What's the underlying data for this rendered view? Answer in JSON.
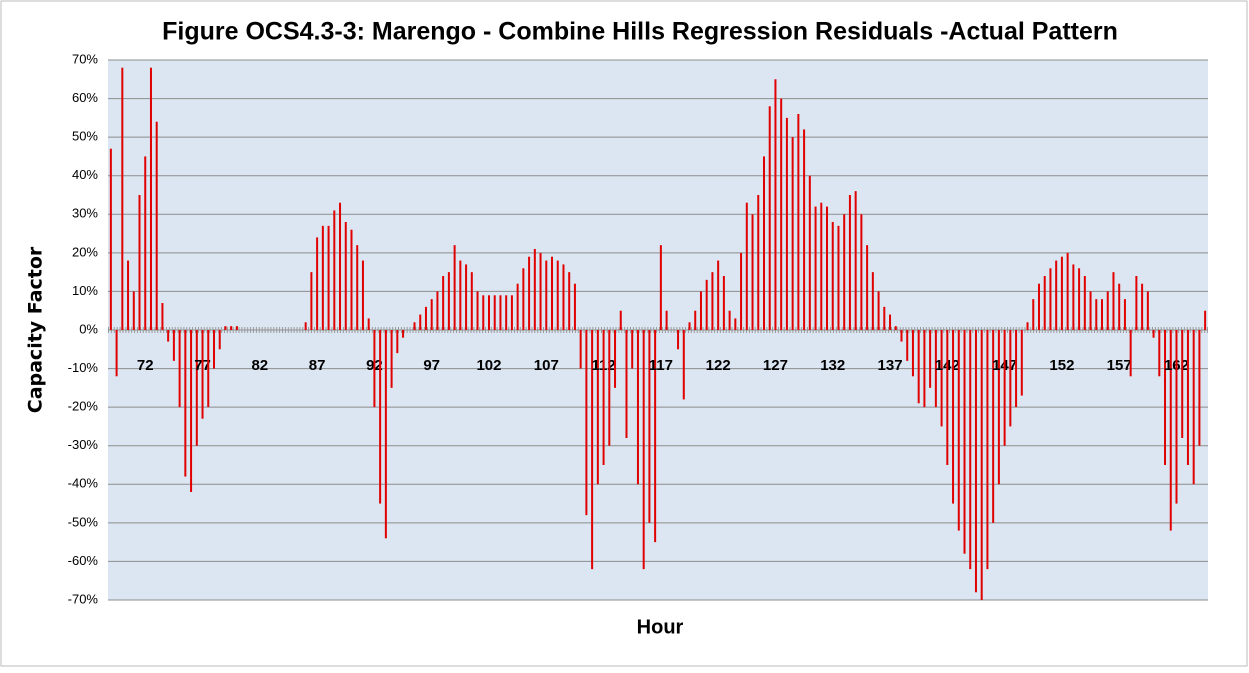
{
  "chart_data": {
    "type": "bar",
    "title": "Figure  OCS4.3-3:  Marengo - Combine Hills Regression Residuals -Actual Pattern",
    "x_label": "Hour",
    "y_label": "Capacity Factor",
    "color": "#e00000",
    "grid": true,
    "ylim": [
      -70,
      70
    ],
    "yticks": [
      {
        "value": -70,
        "label": "-70%"
      },
      {
        "value": -60,
        "label": "-60%"
      },
      {
        "value": -50,
        "label": "-50%"
      },
      {
        "value": -40,
        "label": "-40%"
      },
      {
        "value": -30,
        "label": "-30%"
      },
      {
        "value": -20,
        "label": "-20%"
      },
      {
        "value": -10,
        "label": "-10%"
      },
      {
        "value": 0,
        "label": "0%"
      },
      {
        "value": 10,
        "label": "10%"
      },
      {
        "value": 20,
        "label": "20%"
      },
      {
        "value": 30,
        "label": "30%"
      },
      {
        "value": 40,
        "label": "40%"
      },
      {
        "value": 50,
        "label": "50%"
      },
      {
        "value": 60,
        "label": "60%"
      },
      {
        "value": 70,
        "label": "70%"
      }
    ],
    "categories": [
      null,
      null,
      null,
      null,
      null,
      null,
      "72",
      null,
      null,
      null,
      null,
      null,
      null,
      null,
      null,
      null,
      "77",
      null,
      null,
      null,
      null,
      null,
      null,
      null,
      null,
      null,
      "82",
      null,
      null,
      null,
      null,
      null,
      null,
      null,
      null,
      null,
      "87",
      null,
      null,
      null,
      null,
      null,
      null,
      null,
      null,
      null,
      "92",
      null,
      null,
      null,
      null,
      null,
      null,
      null,
      null,
      null,
      "97",
      null,
      null,
      null,
      null,
      null,
      null,
      null,
      null,
      null,
      "102",
      null,
      null,
      null,
      null,
      null,
      null,
      null,
      null,
      null,
      "107",
      null,
      null,
      null,
      null,
      null,
      null,
      null,
      null,
      null,
      "112",
      null,
      null,
      null,
      null,
      null,
      null,
      null,
      null,
      null,
      "117",
      null,
      null,
      null,
      null,
      null,
      null,
      null,
      null,
      null,
      "122",
      null,
      null,
      null,
      null,
      null,
      null,
      null,
      null,
      null,
      "127",
      null,
      null,
      null,
      null,
      null,
      null,
      null,
      null,
      null,
      "132",
      null,
      null,
      null,
      null,
      null,
      null,
      null,
      null,
      null,
      "137",
      null,
      null,
      null,
      null,
      null,
      null,
      null,
      null,
      null,
      "142",
      null,
      null,
      null,
      null,
      null,
      null,
      null,
      null,
      null,
      "147",
      null,
      null,
      null,
      null,
      null,
      null,
      null,
      null,
      null,
      "152",
      null,
      null,
      null,
      null,
      null,
      null,
      null,
      null,
      null,
      "157",
      null,
      null,
      null,
      null,
      null,
      null,
      null,
      null,
      null,
      "162",
      null,
      null,
      null,
      null,
      null
    ],
    "values": [
      47,
      -12,
      68,
      18,
      10,
      35,
      45,
      68,
      54,
      7,
      -3,
      -8,
      -20,
      -38,
      -42,
      -30,
      -23,
      -20,
      -10,
      -5,
      1,
      1,
      1,
      0,
      0,
      0,
      0,
      0,
      0,
      0,
      0,
      0,
      0,
      0,
      2,
      15,
      24,
      27,
      27,
      31,
      33,
      28,
      26,
      22,
      18,
      3,
      -20,
      -45,
      -54,
      -15,
      -6,
      -2,
      0,
      2,
      4,
      6,
      8,
      10,
      14,
      15,
      22,
      18,
      17,
      15,
      10,
      9,
      9,
      9,
      9,
      9,
      9,
      12,
      16,
      19,
      21,
      20,
      18,
      19,
      18,
      17,
      15,
      12,
      -10,
      -48,
      -62,
      -40,
      -35,
      -30,
      -15,
      5,
      -28,
      -10,
      -40,
      -62,
      -50,
      -55,
      22,
      5,
      0,
      -5,
      -18,
      2,
      5,
      10,
      13,
      15,
      18,
      14,
      5,
      3,
      20,
      33,
      30,
      35,
      45,
      58,
      65,
      60,
      55,
      50,
      56,
      52,
      40,
      32,
      33,
      32,
      28,
      27,
      30,
      35,
      36,
      30,
      22,
      15,
      10,
      6,
      4,
      1,
      -3,
      -8,
      -12,
      -19,
      -20,
      -15,
      -20,
      -25,
      -35,
      -45,
      -52,
      -58,
      -62,
      -68,
      -70,
      -62,
      -50,
      -40,
      -30,
      -25,
      -20,
      -17,
      2,
      8,
      12,
      14,
      16,
      18,
      19,
      20,
      17,
      16,
      14,
      10,
      8,
      8,
      10,
      15,
      12,
      8,
      -12,
      14,
      12,
      10,
      -2,
      -12,
      -35,
      -52,
      -45,
      -28,
      -35,
      -40,
      -30,
      5
    ]
  }
}
